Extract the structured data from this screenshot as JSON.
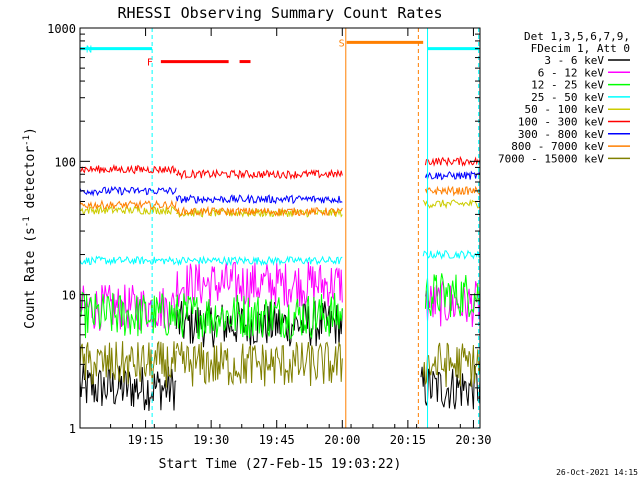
{
  "chart_data": {
    "type": "line",
    "title": "RHESSI Observing Summary Count Rates",
    "xlabel": "Start Time (27-Feb-15 19:03:22)",
    "ylabel_main": "Count Rate (s",
    "ylabel_sup1": "-1",
    "ylabel_mid": " detector",
    "ylabel_sup2": "-1",
    "ylabel_end": ")",
    "yscale": "log",
    "ylim": [
      1,
      1000
    ],
    "xlim": [
      3.0,
      94.5
    ],
    "x_unit": "minutes after 19:00",
    "x_ticks": [
      {
        "value": 18,
        "label": "19:15"
      },
      {
        "value": 33,
        "label": "19:30"
      },
      {
        "value": 48,
        "label": "19:45"
      },
      {
        "value": 63,
        "label": "20:00"
      },
      {
        "value": 78,
        "label": "20:15"
      },
      {
        "value": 93,
        "label": "20:30"
      }
    ],
    "y_ticks": [
      {
        "value": 1,
        "label": "1"
      },
      {
        "value": 10,
        "label": "10"
      },
      {
        "value": 100,
        "label": "100"
      },
      {
        "value": 1000,
        "label": "1000"
      }
    ],
    "legend_header": [
      "Det 1,3,5,6,7,9,",
      "FDecim 1, Att 0"
    ],
    "legend_placement": "right",
    "series": [
      {
        "name": "3 - 6 keV",
        "color": "#000000",
        "segments": [
          [
            3,
            25,
            2
          ],
          [
            25,
            63,
            6
          ],
          [
            81,
            94.5,
            2
          ]
        ]
      },
      {
        "name": "6 - 12 keV",
        "color": "#ff00ff",
        "segments": [
          [
            3,
            25,
            8
          ],
          [
            25,
            63,
            12
          ],
          [
            82,
            94.5,
            8.5
          ]
        ]
      },
      {
        "name": "12 - 25 keV",
        "color": "#00ff00",
        "segments": [
          [
            3,
            25,
            7
          ],
          [
            25,
            63,
            7
          ],
          [
            82,
            94.5,
            10
          ]
        ]
      },
      {
        "name": "25 - 50 keV",
        "color": "#00ffff",
        "segments": [
          [
            3,
            25,
            18
          ],
          [
            25,
            63,
            18
          ],
          [
            81.5,
            94.5,
            20
          ]
        ]
      },
      {
        "name": "50 - 100 keV",
        "color": "#cccc00",
        "segments": [
          [
            3,
            25,
            43
          ],
          [
            25,
            63,
            41
          ],
          [
            81.5,
            94.5,
            48
          ]
        ]
      },
      {
        "name": "100 - 300 keV",
        "color": "#ff0000",
        "segments": [
          [
            3,
            25,
            87
          ],
          [
            25,
            63,
            80
          ],
          [
            82,
            94.5,
            100
          ]
        ]
      },
      {
        "name": "300 - 800 keV",
        "color": "#0000ff",
        "segments": [
          [
            3,
            25,
            60
          ],
          [
            25,
            63,
            52
          ],
          [
            82,
            94.5,
            78
          ]
        ]
      },
      {
        "name": "800 - 7000 keV",
        "color": "#ff7f00",
        "segments": [
          [
            3,
            25,
            47
          ],
          [
            25,
            63,
            42
          ],
          [
            82,
            94.5,
            60
          ]
        ]
      },
      {
        "name": "7000 - 15000 keV",
        "color": "#808000",
        "segments": [
          [
            3,
            25,
            3
          ],
          [
            25,
            63,
            3
          ],
          [
            81.5,
            94.5,
            3
          ]
        ]
      }
    ],
    "flag_bars": [
      {
        "label": "N",
        "color": "#00ffff",
        "segments": [
          [
            3,
            19.5
          ],
          [
            82.5,
            94.2
          ]
        ],
        "level": 700
      },
      {
        "label": "F",
        "color": "#ff0000",
        "segments": [
          [
            21.5,
            37
          ],
          [
            39.5,
            42
          ]
        ],
        "level": 560
      },
      {
        "label": "S",
        "color": "#ff7f00",
        "segments": [
          [
            64,
            81.5
          ]
        ],
        "level": 780
      }
    ],
    "vertical_markers": [
      {
        "x": 19.5,
        "color": "#00ffff",
        "style": "dashed"
      },
      {
        "x": 82.5,
        "color": "#00ffff",
        "style": "solid"
      },
      {
        "x": 94.2,
        "color": "#00ffff",
        "style": "dashed"
      },
      {
        "x": 63.8,
        "color": "#ff7f00",
        "style": "solid"
      },
      {
        "x": 80.4,
        "color": "#ff7f00",
        "style": "dashed"
      }
    ],
    "footer_timestamp": "26-Oct-2021 14:15"
  }
}
